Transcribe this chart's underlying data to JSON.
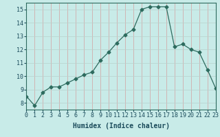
{
  "x": [
    0,
    1,
    2,
    3,
    4,
    5,
    6,
    7,
    8,
    9,
    10,
    11,
    12,
    13,
    14,
    15,
    16,
    17,
    18,
    19,
    20,
    21,
    22,
    23
  ],
  "y": [
    8.5,
    7.8,
    8.8,
    9.2,
    9.2,
    9.5,
    9.8,
    10.1,
    10.3,
    11.2,
    11.8,
    12.5,
    13.1,
    13.5,
    15.0,
    15.2,
    15.2,
    15.2,
    12.2,
    12.4,
    12.0,
    11.8,
    10.5,
    9.1
  ],
  "line_color": "#2d6b5e",
  "marker": "D",
  "marker_size": 2.5,
  "bg_color": "#c8ebe8",
  "grid_color_v": "#d4a0a0",
  "grid_color_h": "#b8d0cc",
  "xlabel": "Humidex (Indice chaleur)",
  "xlim": [
    0,
    23
  ],
  "ylim": [
    7.5,
    15.5
  ],
  "yticks": [
    8,
    9,
    10,
    11,
    12,
    13,
    14,
    15
  ],
  "xticks": [
    0,
    1,
    2,
    3,
    4,
    5,
    6,
    7,
    8,
    9,
    10,
    11,
    12,
    13,
    14,
    15,
    16,
    17,
    18,
    19,
    20,
    21,
    22,
    23
  ],
  "xlabel_fontsize": 7,
  "tick_fontsize": 6,
  "label_color": "#1a4a5a"
}
